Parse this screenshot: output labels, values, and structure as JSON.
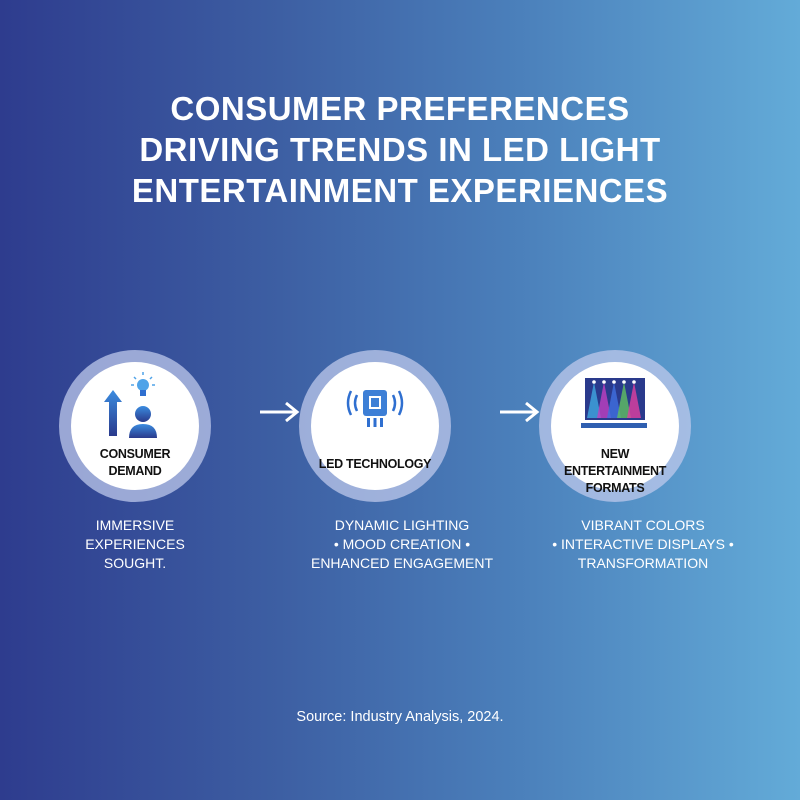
{
  "title": [
    "CONSUMER PREFERENCES",
    "DRIVING TRENDS IN LED LIGHT",
    "ENTERTAINMENT EXPERIENCES"
  ],
  "steps": [
    {
      "label": [
        "CONSUMER",
        "DEMAND"
      ],
      "icon": "person-arrow-lightbulb-icon",
      "desc": [
        "IMMERSIVE",
        "EXPERIENCES",
        "SOUGHT."
      ]
    },
    {
      "label": [
        "LED TECHNOLOGY"
      ],
      "icon": "led-chip-icon",
      "desc": [
        "DYNAMIC LIGHTING",
        "• MOOD CREATION •",
        "ENHANCED ENGAGEMENT"
      ]
    },
    {
      "label": [
        "NEW ENTERTAINMENT",
        "FORMATS"
      ],
      "icon": "stage-lights-screen-icon",
      "desc": [
        "VIBRANT COLORS",
        "• INTERACTIVE DISPLAYS •",
        "TRANSFORMATION"
      ]
    }
  ],
  "source": "Source: Industry Analysis, 2024.",
  "colors": {
    "bg_left": "#2e3c8e",
    "bg_right": "#63abd8",
    "icon_blue": "#2f6fd0"
  }
}
